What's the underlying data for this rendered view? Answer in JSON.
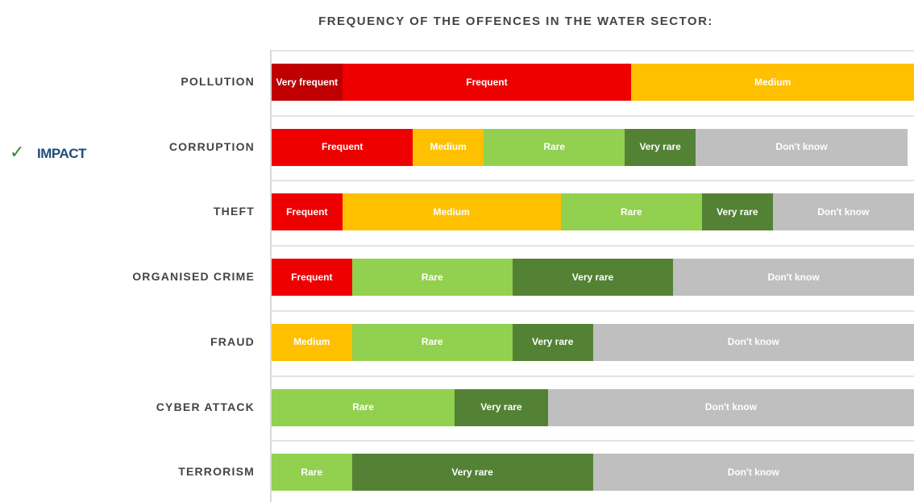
{
  "chart_data": {
    "type": "stacked-bar-horizontal",
    "title": "FREQUENCY OF THE OFFENCES IN THE WATER SECTOR:",
    "annotation": "IMPACT",
    "categories": [
      "POLLUTION",
      "CORRUPTION",
      "THEFT",
      "ORGANISED CRIME",
      "FRAUD",
      "CYBER ATTACK",
      "TERRORISM"
    ],
    "xlim": [
      0,
      100
    ],
    "series": [
      {
        "name": "Very frequent",
        "color": "#c00000",
        "values": [
          11,
          null,
          null,
          null,
          null,
          null,
          null
        ]
      },
      {
        "name": "Frequent",
        "color": "#ee0000",
        "values": [
          45,
          22,
          11,
          12.5,
          null,
          null,
          null
        ]
      },
      {
        "name": "Medium",
        "color": "#ffc000",
        "values": [
          44,
          11,
          34,
          null,
          12.5,
          null,
          null
        ]
      },
      {
        "name": "Rare",
        "color": "#92d050",
        "values": [
          null,
          22,
          22,
          25,
          25,
          28.5,
          12.5
        ]
      },
      {
        "name": "Very rare",
        "color": "#548235",
        "values": [
          null,
          11,
          11,
          25,
          12.5,
          14.5,
          37.5
        ]
      },
      {
        "name": "Don't know",
        "color": "#bfbfbf",
        "values": [
          null,
          33,
          22,
          37.5,
          50,
          57,
          50
        ]
      }
    ]
  }
}
